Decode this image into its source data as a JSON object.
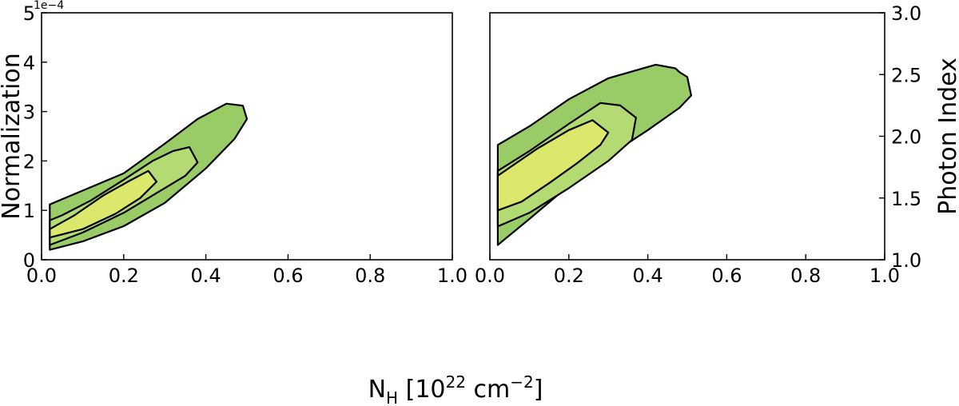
{
  "chart_data": [
    {
      "type": "contour",
      "panel": "left",
      "xlabel": {
        "base": "N",
        "sub": "H",
        "text": " [10",
        "sup": "22",
        "text2": " cm",
        "sup2": "−2",
        "text3": "]"
      },
      "ylabel": "Normalization",
      "y_offset_label": "1e−4",
      "xlim": [
        0.0,
        1.0
      ],
      "ylim": [
        0,
        5
      ],
      "x_ticks": [
        0.0,
        0.2,
        0.4,
        0.6,
        0.8,
        1.0
      ],
      "x_tick_labels": [
        "0.0",
        "0.2",
        "0.4",
        "0.6",
        "0.8",
        "1.0"
      ],
      "y_ticks": [
        0,
        1,
        2,
        3,
        4,
        5
      ],
      "y_tick_labels": [
        "0",
        "1",
        "2",
        "3",
        "4",
        "5"
      ],
      "grid": false,
      "levels": [
        {
          "name": "outer",
          "color": "#99cc66",
          "points": [
            [
              0.02,
              0.2
            ],
            [
              0.1,
              0.37
            ],
            [
              0.2,
              0.68
            ],
            [
              0.3,
              1.15
            ],
            [
              0.4,
              1.85
            ],
            [
              0.47,
              2.45
            ],
            [
              0.5,
              2.85
            ],
            [
              0.49,
              3.12
            ],
            [
              0.45,
              3.16
            ],
            [
              0.38,
              2.85
            ],
            [
              0.3,
              2.35
            ],
            [
              0.2,
              1.75
            ],
            [
              0.1,
              1.4
            ],
            [
              0.02,
              1.12
            ]
          ]
        },
        {
          "name": "middle",
          "color": "#b3da73",
          "points": [
            [
              0.02,
              0.3
            ],
            [
              0.1,
              0.55
            ],
            [
              0.2,
              0.95
            ],
            [
              0.28,
              1.35
            ],
            [
              0.35,
              1.7
            ],
            [
              0.38,
              1.97
            ],
            [
              0.36,
              2.28
            ],
            [
              0.32,
              2.2
            ],
            [
              0.27,
              2.0
            ],
            [
              0.2,
              1.62
            ],
            [
              0.12,
              1.2
            ],
            [
              0.05,
              0.9
            ],
            [
              0.02,
              0.8
            ]
          ]
        },
        {
          "name": "inner",
          "color": "#dce86c",
          "points": [
            [
              0.02,
              0.45
            ],
            [
              0.1,
              0.62
            ],
            [
              0.18,
              0.93
            ],
            [
              0.24,
              1.25
            ],
            [
              0.28,
              1.58
            ],
            [
              0.26,
              1.8
            ],
            [
              0.21,
              1.58
            ],
            [
              0.15,
              1.3
            ],
            [
              0.08,
              0.9
            ],
            [
              0.02,
              0.62
            ]
          ]
        }
      ]
    },
    {
      "type": "contour",
      "panel": "right",
      "ylabel": "Photon Index",
      "xlim": [
        0.0,
        1.0
      ],
      "ylim": [
        1.0,
        3.0
      ],
      "x_ticks": [
        0.0,
        0.2,
        0.4,
        0.6,
        0.8,
        1.0
      ],
      "x_tick_labels": [
        "0.0",
        "0.2",
        "0.4",
        "0.6",
        "0.8",
        "1.0"
      ],
      "y_ticks": [
        1.0,
        1.5,
        2.0,
        2.5,
        3.0
      ],
      "y_tick_labels": [
        "1.0",
        "1.5",
        "2.0",
        "2.5",
        "3.0"
      ],
      "grid": false,
      "levels": [
        {
          "name": "outer",
          "color": "#99cc66",
          "points": [
            [
              0.02,
              1.12
            ],
            [
              0.1,
              1.33
            ],
            [
              0.2,
              1.6
            ],
            [
              0.3,
              1.84
            ],
            [
              0.4,
              2.05
            ],
            [
              0.48,
              2.23
            ],
            [
              0.51,
              2.33
            ],
            [
              0.5,
              2.48
            ],
            [
              0.48,
              2.52
            ],
            [
              0.47,
              2.55
            ],
            [
              0.42,
              2.58
            ],
            [
              0.3,
              2.47
            ],
            [
              0.2,
              2.3
            ],
            [
              0.1,
              2.08
            ],
            [
              0.02,
              1.93
            ]
          ]
        },
        {
          "name": "middle",
          "color": "#b3da73",
          "points": [
            [
              0.02,
              1.27
            ],
            [
              0.1,
              1.38
            ],
            [
              0.2,
              1.58
            ],
            [
              0.3,
              1.8
            ],
            [
              0.36,
              1.97
            ],
            [
              0.37,
              2.15
            ],
            [
              0.33,
              2.25
            ],
            [
              0.28,
              2.27
            ],
            [
              0.2,
              2.1
            ],
            [
              0.1,
              1.88
            ],
            [
              0.02,
              1.72
            ]
          ]
        },
        {
          "name": "inner",
          "color": "#dce86c",
          "points": [
            [
              0.02,
              1.4
            ],
            [
              0.08,
              1.47
            ],
            [
              0.15,
              1.62
            ],
            [
              0.22,
              1.78
            ],
            [
              0.28,
              1.93
            ],
            [
              0.3,
              2.03
            ],
            [
              0.26,
              2.13
            ],
            [
              0.2,
              2.05
            ],
            [
              0.12,
              1.9
            ],
            [
              0.02,
              1.68
            ]
          ]
        }
      ]
    }
  ]
}
